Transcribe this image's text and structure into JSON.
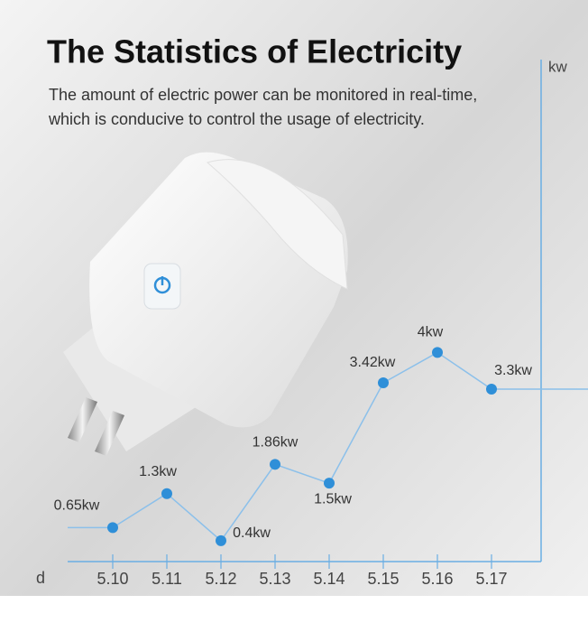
{
  "chart_data": {
    "type": "line",
    "title": "The Statistics of Electricity",
    "subtitle": [
      "The amount of electric power can be monitored in real-time,",
      "which is conducive to control the usage of electricity."
    ],
    "y_label": "kw",
    "x_label": "d",
    "categories": [
      "5.10",
      "5.11",
      "5.12",
      "5.13",
      "5.14",
      "5.15",
      "5.16",
      "5.17"
    ],
    "values": [
      0.65,
      1.3,
      0.4,
      1.86,
      1.5,
      3.42,
      4,
      3.3
    ],
    "value_labels": [
      "0.65kw",
      "1.3kw",
      "0.4kw",
      "1.86kw",
      "1.5kw",
      "3.42kw",
      "4kw",
      "3.3kw"
    ],
    "ylim": [
      0,
      9.5
    ],
    "color": "#2f8fd8"
  }
}
